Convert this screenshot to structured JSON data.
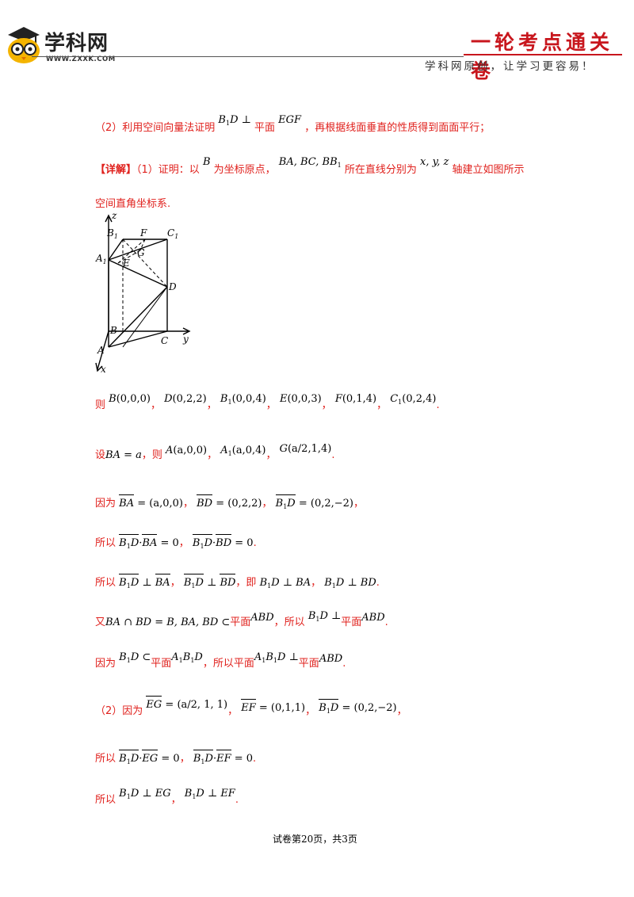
{
  "header": {
    "logo_text": "学科网",
    "logo_url": "WWW.ZXXK.COM",
    "series_title": "一轮考点通关卷",
    "slogan": "学科网原创，让学习更容易！"
  },
  "content": {
    "line1": {
      "prefix": "（2）利用空间向量法证明",
      "mid": "平面",
      "suffix": "，再根据线面垂直的性质得到面面平行；"
    },
    "line2": {
      "tag": "【详解】",
      "part1": "（1）证明：以",
      "part2": "为坐标原点，",
      "part3": "所在直线分别为",
      "part4": "轴建立如图所示"
    },
    "line3": "空间直角坐标系.",
    "line4_prefix": "则",
    "line5_prefix": "设",
    "line5_mid": "，则",
    "line6_prefix": "因为",
    "line7_prefix": "所以",
    "line8_prefix": "所以",
    "line8_mid": "，即",
    "line9_prefix": "又",
    "line9_plane": "平面",
    "line9_mid": "，所以",
    "line10_prefix": "因为",
    "line10_plane": "平面",
    "line10_mid": "，所以平面",
    "line11_prefix": "（2）因为",
    "line12_prefix": "所以",
    "line13_prefix": "所以"
  },
  "figure": {
    "labels": [
      "z",
      "B1",
      "F",
      "C1",
      "A1",
      "G",
      "E",
      "D",
      "B",
      "A",
      "C",
      "y",
      "x"
    ]
  },
  "footer": "试卷第20页，共3页"
}
